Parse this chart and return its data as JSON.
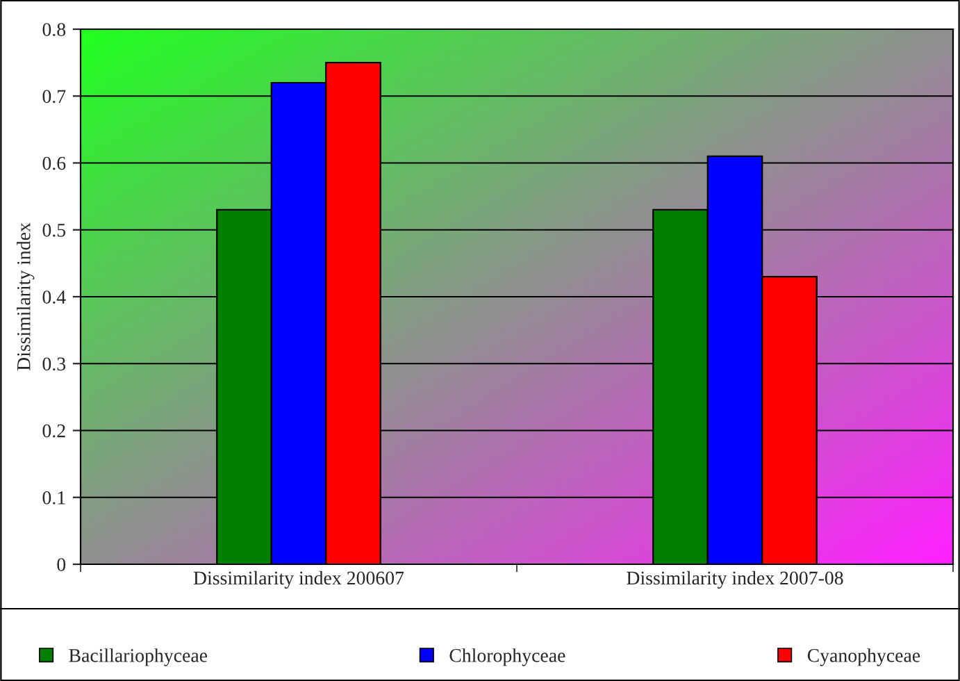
{
  "chart_data": {
    "type": "bar",
    "ylabel": "Dissimilarity index",
    "categories": [
      "Dissimilarity index 200607",
      "Dissimilarity index 2007-08"
    ],
    "series": [
      {
        "name": "Bacillariophyceae",
        "color": "#007f00",
        "values": [
          0.53,
          0.53
        ]
      },
      {
        "name": "Chlorophyceae",
        "color": "#0000ff",
        "values": [
          0.72,
          0.61
        ]
      },
      {
        "name": "Cyanophyceae",
        "color": "#ff0000",
        "values": [
          0.75,
          0.43
        ]
      }
    ],
    "ylim": [
      0,
      0.8
    ],
    "yticks": [
      0,
      0.1,
      0.2,
      0.3,
      0.4,
      0.5,
      0.6,
      0.7,
      0.8
    ],
    "grid": "y",
    "legend": "bottom"
  }
}
